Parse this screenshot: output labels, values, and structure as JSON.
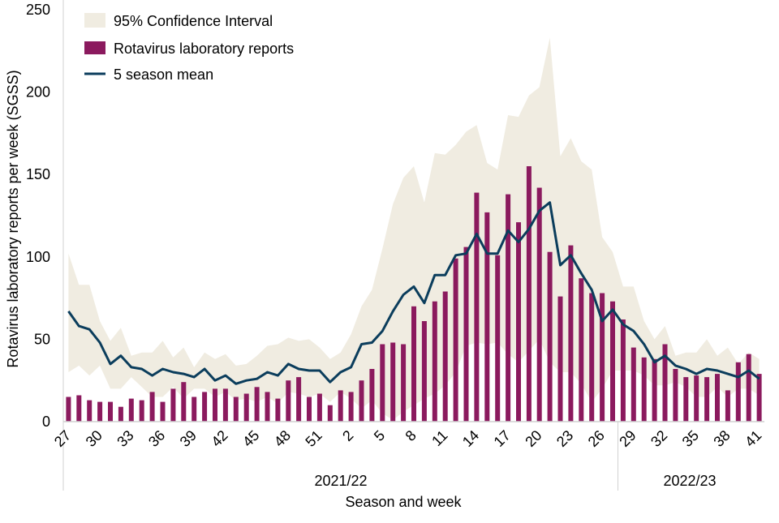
{
  "chart_data": {
    "type": "bar",
    "xlabel": "Season and week",
    "ylabel": "Rotavirus laboratory reports per week (SGSS)",
    "ylim": [
      0,
      250
    ],
    "yticks": [
      0,
      50,
      100,
      150,
      200,
      250
    ],
    "grid": false,
    "legend_position": "top-left",
    "seasons": [
      {
        "label": "2021/22",
        "weeks": [
          27,
          28,
          29,
          30,
          31,
          32,
          33,
          34,
          35,
          36,
          37,
          38,
          39,
          40,
          41,
          42,
          43,
          44,
          45,
          46,
          47,
          48,
          49,
          50,
          51,
          52,
          1,
          2,
          3,
          4,
          5,
          6,
          7,
          8,
          9,
          10,
          11,
          12,
          13,
          14,
          15,
          16,
          17,
          18,
          19,
          20,
          21,
          22,
          23,
          24,
          25,
          26,
          27
        ]
      },
      {
        "label": "2022/23",
        "weeks": [
          28,
          29,
          30,
          31,
          32,
          33,
          34,
          35,
          36,
          37,
          38,
          39,
          40,
          41
        ]
      }
    ],
    "x": [
      27,
      28,
      29,
      30,
      31,
      32,
      33,
      34,
      35,
      36,
      37,
      38,
      39,
      40,
      41,
      42,
      43,
      44,
      45,
      46,
      47,
      48,
      49,
      50,
      51,
      52,
      1,
      2,
      3,
      4,
      5,
      6,
      7,
      8,
      9,
      10,
      11,
      12,
      13,
      14,
      15,
      16,
      17,
      18,
      19,
      20,
      21,
      22,
      23,
      24,
      25,
      26,
      27,
      28,
      29,
      30,
      31,
      32,
      33,
      34,
      35,
      36,
      37,
      38,
      39,
      40,
      41
    ],
    "tick_labels": [
      "27",
      "30",
      "33",
      "36",
      "39",
      "42",
      "45",
      "48",
      "51",
      "2",
      "5",
      "8",
      "11",
      "14",
      "17",
      "20",
      "23",
      "26",
      "29",
      "32",
      "35",
      "38",
      "41"
    ],
    "series": [
      {
        "name": "95% Confidence Interval",
        "type": "band",
        "color": "#F0ECE1",
        "upper": [
          102,
          83,
          83,
          61,
          49,
          57,
          40,
          42,
          42,
          49,
          39,
          45,
          33,
          42,
          38,
          41,
          34,
          35,
          40,
          46,
          47,
          51,
          49,
          50,
          45,
          38,
          42,
          53,
          70,
          80,
          105,
          132,
          148,
          155,
          133,
          163,
          162,
          168,
          176,
          180,
          157,
          153,
          186,
          185,
          198,
          203,
          233,
          161,
          172,
          158,
          153,
          112,
          103,
          82,
          82,
          61,
          50,
          58,
          40,
          42,
          42,
          50,
          40,
          45,
          35,
          42,
          38
        ],
        "lower": [
          30,
          34,
          28,
          34,
          20,
          20,
          27,
          21,
          15,
          15,
          21,
          14,
          20,
          20,
          15,
          18,
          13,
          14,
          12,
          15,
          11,
          18,
          17,
          15,
          17,
          12,
          18,
          14,
          8,
          13,
          5,
          1,
          6,
          10,
          14,
          17,
          22,
          30,
          46,
          48,
          47,
          48,
          41,
          36,
          43,
          50,
          36,
          30,
          30,
          23,
          12,
          20,
          31,
          31,
          31,
          28,
          22,
          22,
          24,
          21,
          15,
          15,
          21,
          15,
          20,
          20,
          16
        ]
      },
      {
        "name": "Rotavirus laboratory reports",
        "type": "bar",
        "color": "#8B1A5E",
        "values": [
          15,
          16,
          13,
          12,
          12,
          9,
          14,
          13,
          18,
          12,
          20,
          24,
          15,
          18,
          20,
          20,
          15,
          17,
          21,
          18,
          14,
          25,
          27,
          15,
          17,
          10,
          19,
          18,
          25,
          32,
          47,
          48,
          47,
          70,
          61,
          73,
          79,
          99,
          106,
          139,
          127,
          101,
          138,
          121,
          155,
          142,
          103,
          76,
          107,
          87,
          78,
          78,
          73,
          62,
          45,
          39,
          38,
          47,
          32,
          27,
          28,
          27,
          29,
          19,
          36,
          41,
          29
        ]
      },
      {
        "name": "5 season mean",
        "type": "line",
        "color": "#0B3D5C",
        "values": [
          67,
          58,
          56,
          48,
          35,
          40,
          33,
          32,
          28,
          32,
          30,
          29,
          27,
          32,
          25,
          28,
          23,
          25,
          26,
          30,
          28,
          35,
          32,
          31,
          31,
          24,
          30,
          33,
          47,
          48,
          55,
          67,
          77,
          82,
          72,
          89,
          89,
          101,
          102,
          114,
          102,
          102,
          116,
          109,
          117,
          128,
          133,
          95,
          101,
          90,
          80,
          61,
          68,
          59,
          55,
          47,
          36,
          40,
          34,
          32,
          29,
          32,
          31,
          29,
          27,
          31,
          26
        ]
      }
    ]
  }
}
